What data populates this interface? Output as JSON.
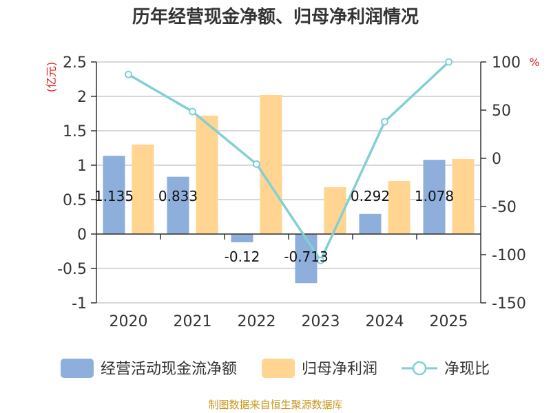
{
  "chart_data": {
    "type": "bar",
    "title": "历年经营现金净额、归母净利润情况",
    "categories": [
      "2020",
      "2021",
      "2022",
      "2023",
      "2024",
      "2025"
    ],
    "left_axis": {
      "unit": "(亿元)",
      "min": -1,
      "max": 2.5,
      "ticks": [
        2.5,
        2,
        1.5,
        1,
        0.5,
        0,
        -0.5,
        -1
      ]
    },
    "right_axis": {
      "unit": "%",
      "min": -150,
      "max": 100,
      "ticks": [
        100,
        50,
        0,
        -50,
        -100,
        -150
      ]
    },
    "series": [
      {
        "name": "经营活动现金流净额",
        "kind": "bar",
        "axis": "left",
        "color": "#8eaedb",
        "values": [
          1.135,
          0.833,
          -0.12,
          -0.713,
          0.292,
          1.078
        ],
        "labels": [
          "1.135",
          "0.833",
          "-0.12",
          "-0.713",
          "0.292",
          "1.078"
        ]
      },
      {
        "name": "归母净利润",
        "kind": "bar",
        "axis": "left",
        "color": "#ffd591",
        "values": [
          1.3,
          1.72,
          2.02,
          0.68,
          0.77,
          1.09
        ]
      },
      {
        "name": "净现比",
        "kind": "line",
        "axis": "right",
        "color": "#82cfd4",
        "values": [
          87,
          48.5,
          -6,
          -106,
          38,
          100
        ]
      }
    ],
    "legend_position": "bottom",
    "grid": true
  },
  "footer": {
    "source": "制图数据来自恒生聚源数据库"
  }
}
